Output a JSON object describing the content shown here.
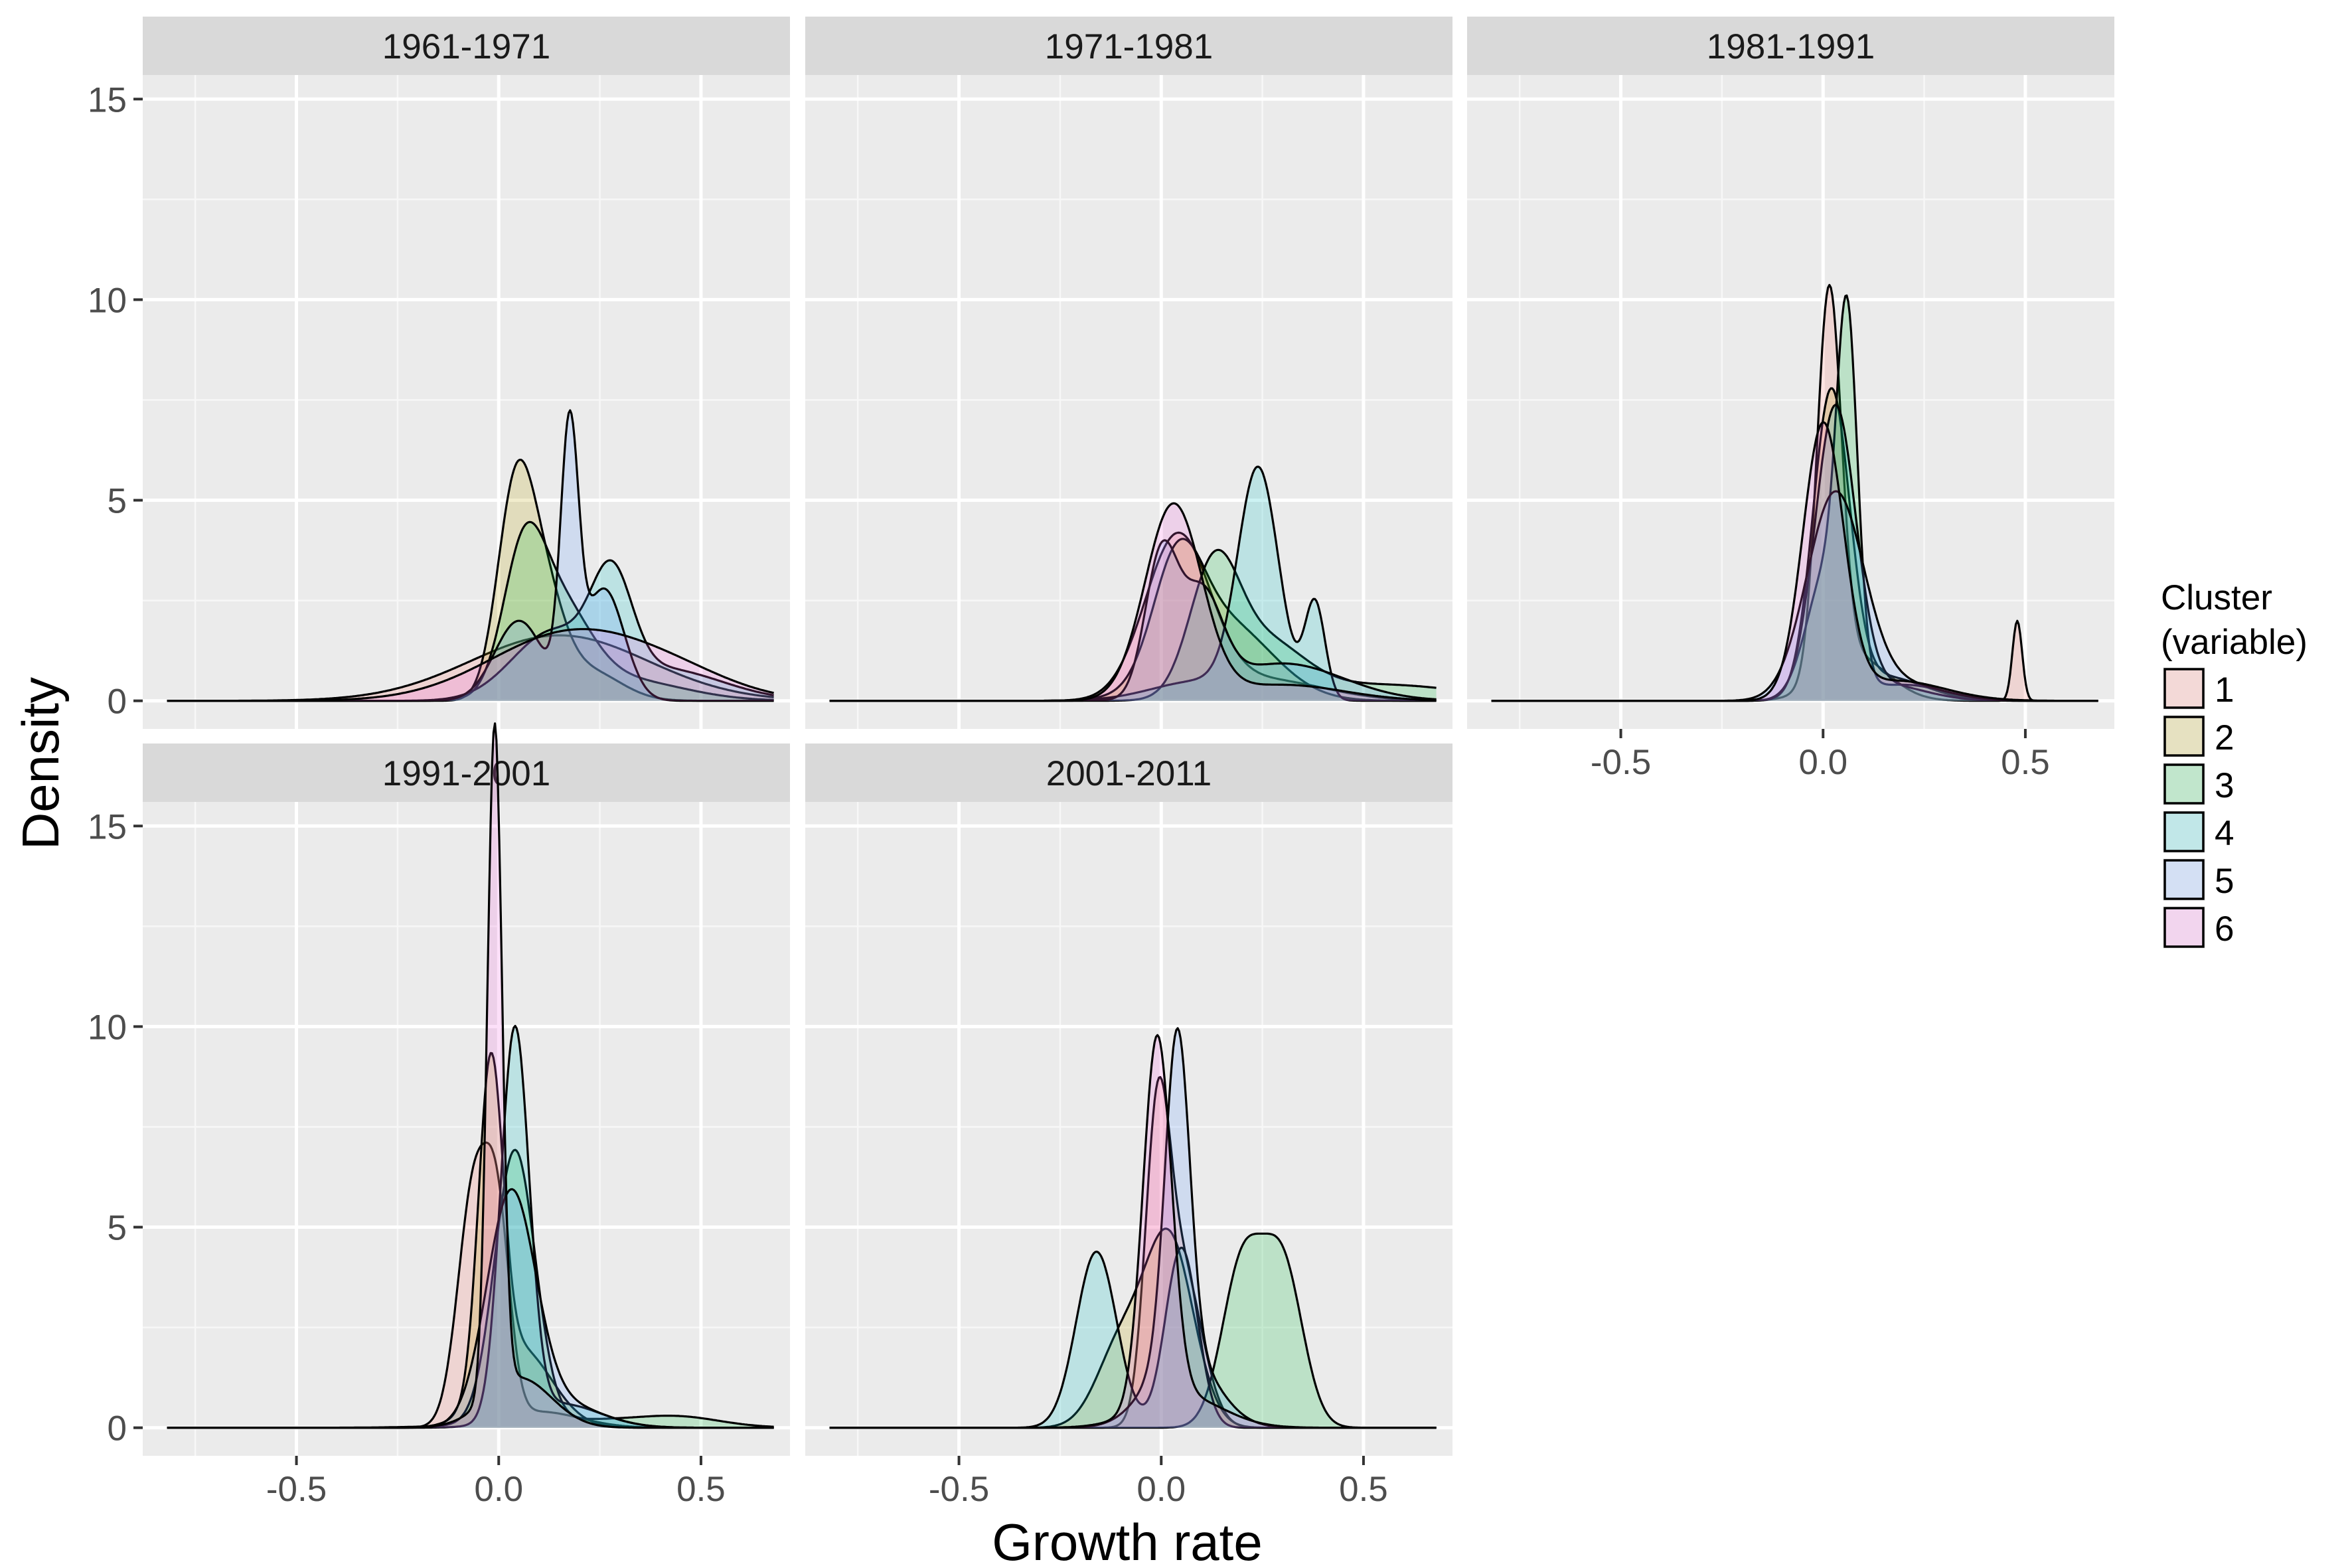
{
  "chart_data": {
    "type": "area",
    "subtype": "faceted density plot",
    "xlabel": "Growth rate",
    "ylabel": "Density",
    "xlim": [
      -0.88,
      0.72
    ],
    "ylim": [
      -0.7,
      15.6
    ],
    "x_ticks": [
      -0.5,
      0.0,
      0.5
    ],
    "x_tick_labels": [
      "-0.5",
      "0.0",
      "0.5"
    ],
    "y_ticks": [
      0,
      5,
      10,
      15
    ],
    "y_tick_labels": [
      "0",
      "5",
      "10",
      "15"
    ],
    "grid": true,
    "legend": {
      "title": [
        "Cluster",
        "(variable)"
      ],
      "position": "right",
      "entries": [
        {
          "label": "1",
          "color": "#F8766D"
        },
        {
          "label": "2",
          "color": "#B79F00"
        },
        {
          "label": "3",
          "color": "#00BA38"
        },
        {
          "label": "4",
          "color": "#00BFC4"
        },
        {
          "label": "5",
          "color": "#619CFF"
        },
        {
          "label": "6",
          "color": "#F564E3"
        }
      ]
    },
    "fill_opacity": 0.2,
    "x_range": [
      -0.82,
      0.68
    ],
    "facets": [
      {
        "title": "1961-1971",
        "series": [
          {
            "name": "1",
            "components": [
              [
                0.9,
                0.15,
                0.22
              ]
            ]
          },
          {
            "name": "2",
            "components": [
              [
                0.55,
                0.04,
                0.045
              ],
              [
                0.3,
                0.11,
                0.05
              ],
              [
                0.15,
                0.22,
                0.08
              ]
            ]
          },
          {
            "name": "3",
            "components": [
              [
                0.35,
                0.06,
                0.05
              ],
              [
                0.45,
                0.14,
                0.08
              ],
              [
                0.2,
                0.3,
                0.15
              ]
            ]
          },
          {
            "name": "4",
            "components": [
              [
                0.4,
                0.13,
                0.1
              ],
              [
                0.3,
                0.28,
                0.05
              ],
              [
                0.3,
                0.4,
                0.15
              ]
            ]
          },
          {
            "name": "5",
            "components": [
              [
                0.3,
                0.05,
                0.06
              ],
              [
                0.35,
                0.175,
                0.022
              ],
              [
                0.35,
                0.26,
                0.05
              ]
            ]
          },
          {
            "name": "6",
            "components": [
              [
                0.85,
                0.18,
                0.2
              ],
              [
                0.15,
                0.45,
                0.15
              ]
            ]
          }
        ]
      },
      {
        "title": "1971-1981",
        "series": [
          {
            "name": "1",
            "components": [
              [
                0.8,
                0.04,
                0.08
              ],
              [
                0.2,
                0.25,
                0.15
              ]
            ]
          },
          {
            "name": "2",
            "components": [
              [
                0.4,
                0.04,
                0.06
              ],
              [
                0.6,
                0.15,
                0.12
              ]
            ]
          },
          {
            "name": "3",
            "components": [
              [
                0.45,
                0.13,
                0.06
              ],
              [
                0.35,
                0.25,
                0.1
              ],
              [
                0.2,
                0.55,
                0.2
              ]
            ]
          },
          {
            "name": "4",
            "components": [
              [
                0.7,
                0.24,
                0.05
              ],
              [
                0.15,
                0.38,
                0.025
              ],
              [
                0.15,
                0.1,
                0.12
              ]
            ]
          },
          {
            "name": "5",
            "components": [
              [
                0.35,
                0.0,
                0.04
              ],
              [
                0.3,
                0.1,
                0.05
              ],
              [
                0.35,
                0.3,
                0.15
              ]
            ]
          },
          {
            "name": "6",
            "components": [
              [
                0.85,
                0.03,
                0.07
              ],
              [
                0.15,
                0.3,
                0.15
              ]
            ]
          }
        ]
      },
      {
        "title": "1981-1991",
        "series": [
          {
            "name": "1",
            "components": [
              [
                0.72,
                0.015,
                0.03
              ],
              [
                0.22,
                0.08,
                0.08
              ],
              [
                0.06,
                0.48,
                0.012
              ]
            ]
          },
          {
            "name": "2",
            "components": [
              [
                0.85,
                0.02,
                0.045
              ],
              [
                0.15,
                0.15,
                0.1
              ]
            ]
          },
          {
            "name": "3",
            "components": [
              [
                0.5,
                0.06,
                0.025
              ],
              [
                0.4,
                0.01,
                0.05
              ],
              [
                0.1,
                0.2,
                0.1
              ]
            ]
          },
          {
            "name": "4",
            "components": [
              [
                0.9,
                0.03,
                0.05
              ],
              [
                0.1,
                0.15,
                0.1
              ]
            ]
          },
          {
            "name": "5",
            "components": [
              [
                0.9,
                0.03,
                0.07
              ],
              [
                0.1,
                0.2,
                0.1
              ]
            ]
          },
          {
            "name": "6",
            "components": [
              [
                0.85,
                0.0,
                0.05
              ],
              [
                0.15,
                0.18,
                0.12
              ]
            ]
          }
        ]
      },
      {
        "title": "1991-2001",
        "series": [
          {
            "name": "1",
            "components": [
              [
                0.6,
                -0.06,
                0.04
              ],
              [
                0.3,
                0.0,
                0.03
              ],
              [
                0.1,
                0.1,
                0.1
              ]
            ]
          },
          {
            "name": "2",
            "components": [
              [
                0.6,
                -0.02,
                0.03
              ],
              [
                0.4,
                0.05,
                0.08
              ]
            ]
          },
          {
            "name": "3",
            "components": [
              [
                0.85,
                0.04,
                0.05
              ],
              [
                0.1,
                0.2,
                0.2
              ],
              [
                0.05,
                0.45,
                0.1
              ]
            ]
          },
          {
            "name": "4",
            "components": [
              [
                0.85,
                0.04,
                0.035
              ],
              [
                0.15,
                0.15,
                0.1
              ]
            ]
          },
          {
            "name": "5",
            "components": [
              [
                0.85,
                0.03,
                0.06
              ],
              [
                0.15,
                0.15,
                0.1
              ]
            ]
          },
          {
            "name": "6",
            "components": [
              [
                0.75,
                -0.01,
                0.018
              ],
              [
                0.25,
                0.05,
                0.08
              ]
            ]
          }
        ]
      },
      {
        "title": "2001-2011",
        "series": [
          {
            "name": "1",
            "components": [
              [
                0.5,
                -0.01,
                0.03
              ],
              [
                0.5,
                0.05,
                0.05
              ]
            ]
          },
          {
            "name": "2",
            "components": [
              [
                0.3,
                -0.1,
                0.06
              ],
              [
                0.7,
                0.02,
                0.06
              ]
            ]
          },
          {
            "name": "3",
            "components": [
              [
                0.5,
                0.2,
                0.05
              ],
              [
                0.5,
                0.3,
                0.05
              ]
            ]
          },
          {
            "name": "4",
            "components": [
              [
                0.55,
                -0.16,
                0.05
              ],
              [
                0.45,
                0.05,
                0.04
              ]
            ]
          },
          {
            "name": "5",
            "components": [
              [
                0.6,
                0.04,
                0.03
              ],
              [
                0.4,
                0.05,
                0.08
              ]
            ]
          },
          {
            "name": "6",
            "components": [
              [
                0.8,
                -0.01,
                0.035
              ],
              [
                0.2,
                0.05,
                0.1
              ]
            ]
          }
        ]
      }
    ]
  }
}
